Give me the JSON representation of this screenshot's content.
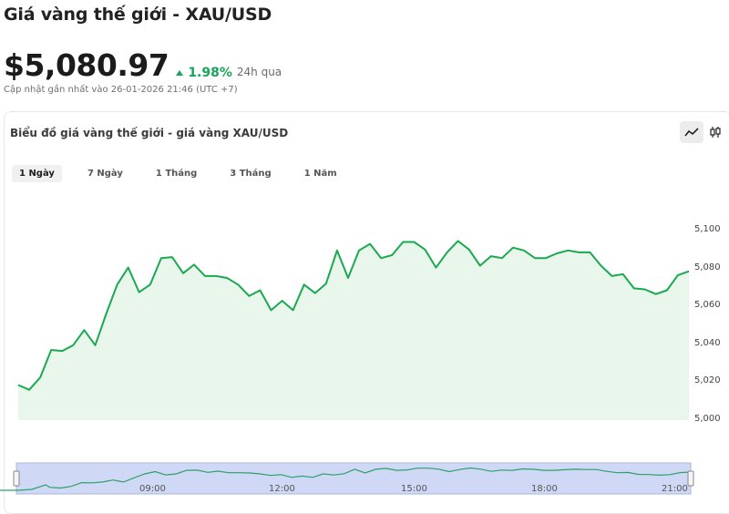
{
  "header": {
    "title": "Giá vàng thế giới - XAU/USD",
    "price": "$5,080.97",
    "change": "1.98%",
    "period": "24h qua",
    "updated": "Cập nhật gần nhất vào 26-01-2026 21:46 (UTC +7)"
  },
  "chart_card": {
    "title": "Biểu đồ giá vàng thế giới - giá vàng XAU/USD",
    "tabs": [
      {
        "label": "1 Ngày",
        "active": true
      },
      {
        "label": "7 Ngày",
        "active": false
      },
      {
        "label": "1 Tháng",
        "active": false
      },
      {
        "label": "3 Tháng",
        "active": false
      },
      {
        "label": "1 Năm",
        "active": false
      }
    ],
    "view_toggles": [
      {
        "icon": "line-chart-icon",
        "active": true
      },
      {
        "icon": "candlestick-icon",
        "active": false
      }
    ]
  },
  "colors": {
    "line": "#1aa94f",
    "area": "#e8f6ec",
    "positive": "#18a558",
    "navigator_fill": "#cfd8f5"
  },
  "chart_data": {
    "type": "area",
    "title": "",
    "xlabel": "",
    "ylabel": "",
    "ylim": [
      5000,
      5100
    ],
    "yticks": [
      5000,
      5020,
      5040,
      5060,
      5080,
      5100
    ],
    "ytick_labels": [
      "5,000",
      "5,020",
      "5,040",
      "5,060",
      "5,080",
      "5,100"
    ],
    "series": [
      {
        "values": [
          5018.5,
          5016,
          5022.5,
          5037,
          5036.5,
          5039.5,
          5047.5,
          5039.5,
          5056,
          5071.5,
          5080.5,
          5067.5,
          5071.5,
          5085.5,
          5086,
          5077.5,
          5082,
          5076,
          5076,
          5075,
          5071.5,
          5065.5,
          5068.5,
          5058,
          5063,
          5058,
          5071.5,
          5067,
          5072,
          5089.5,
          5075,
          5089.5,
          5093,
          5085.5,
          5087,
          5094,
          5094,
          5090,
          5080.5,
          5088.5,
          5094.5,
          5090,
          5081.5,
          5086.5,
          5085.5,
          5091,
          5089.5,
          5085.5,
          5085.5,
          5088,
          5089.5,
          5088.5,
          5088.5,
          5081.5,
          5076,
          5077,
          5069.5,
          5069,
          5066.5,
          5068.5,
          5076.5,
          5078.5
        ]
      }
    ],
    "navigator_ticks": [
      "09:00",
      "12:00",
      "15:00",
      "18:00",
      "21:00"
    ]
  }
}
